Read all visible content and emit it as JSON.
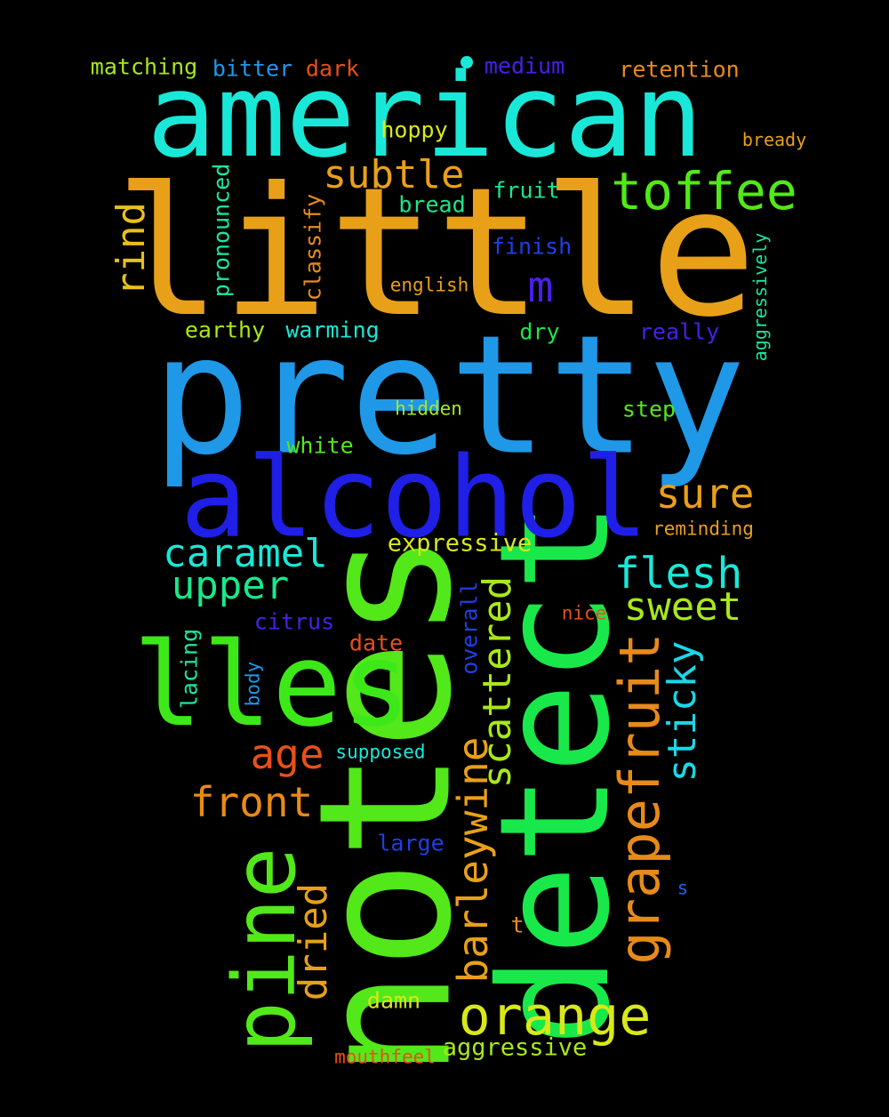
{
  "words": [
    {
      "text": "little",
      "color": "#e8a019"
    },
    {
      "text": "pretty",
      "color": "#1f98e8"
    },
    {
      "text": "american",
      "color": "#19e8d8"
    },
    {
      "text": "notes",
      "color": "#52e819"
    },
    {
      "text": "detect",
      "color": "#19e84a"
    },
    {
      "text": "alcohol",
      "color": "#1f1fe8"
    },
    {
      "text": "lles",
      "color": "#3de819"
    },
    {
      "text": "pine",
      "color": "#52e819"
    },
    {
      "text": "grapefruit",
      "color": "#e88a19"
    },
    {
      "text": "orange",
      "color": "#d8e819"
    },
    {
      "text": "toffee",
      "color": "#52e819"
    },
    {
      "text": "barleywine",
      "color": "#e8a019"
    },
    {
      "text": "scattered",
      "color": "#a8e819"
    },
    {
      "text": "sticky",
      "color": "#19d8e8"
    },
    {
      "text": "caramel",
      "color": "#19e8d8"
    },
    {
      "text": "upper",
      "color": "#19e88a"
    },
    {
      "text": "flesh",
      "color": "#19e8d8"
    },
    {
      "text": "sweet",
      "color": "#a8e819"
    },
    {
      "text": "sure",
      "color": "#e8a019"
    },
    {
      "text": "subtle",
      "color": "#e8a019"
    },
    {
      "text": "front",
      "color": "#e88a19"
    },
    {
      "text": "dried",
      "color": "#e8a019"
    },
    {
      "text": "age",
      "color": "#e85019"
    },
    {
      "text": "rind",
      "color": "#e8c019"
    },
    {
      "text": "m",
      "color": "#4a1fe8"
    },
    {
      "text": "expressive",
      "color": "#d8e819"
    },
    {
      "text": "aggressive",
      "color": "#a8e819"
    },
    {
      "text": "pronounced",
      "color": "#19e8a0"
    },
    {
      "text": "classify",
      "color": "#e88a19"
    },
    {
      "text": "aggressively",
      "color": "#19e8a0"
    },
    {
      "text": "matching",
      "color": "#a8e819"
    },
    {
      "text": "bitter",
      "color": "#1f98e8"
    },
    {
      "text": "dark",
      "color": "#e85019"
    },
    {
      "text": "medium",
      "color": "#4a1fe8"
    },
    {
      "text": "retention",
      "color": "#e88a19"
    },
    {
      "text": "bready",
      "color": "#e8a019"
    },
    {
      "text": "hoppy",
      "color": "#d8e819"
    },
    {
      "text": "fruit",
      "color": "#19e88a"
    },
    {
      "text": "bread",
      "color": "#19e88a"
    },
    {
      "text": "finish",
      "color": "#1f3fe8"
    },
    {
      "text": "english",
      "color": "#e8a019"
    },
    {
      "text": "earthy",
      "color": "#a8e819"
    },
    {
      "text": "warming",
      "color": "#19e8d8"
    },
    {
      "text": "dry",
      "color": "#19e84a"
    },
    {
      "text": "really",
      "color": "#4a1fe8"
    },
    {
      "text": "hidden",
      "color": "#a8e819"
    },
    {
      "text": "step",
      "color": "#52e819"
    },
    {
      "text": "white",
      "color": "#52e819"
    },
    {
      "text": "reminding",
      "color": "#e8a019"
    },
    {
      "text": "citrus",
      "color": "#4a1fe8"
    },
    {
      "text": "nice",
      "color": "#e85019"
    },
    {
      "text": "date",
      "color": "#e85019"
    },
    {
      "text": "overall",
      "color": "#1f3fe8"
    },
    {
      "text": "lacing",
      "color": "#19e8a0"
    },
    {
      "text": "body",
      "color": "#1f98e8"
    },
    {
      "text": "supposed",
      "color": "#19e8d8"
    },
    {
      "text": "large",
      "color": "#1f3fe8"
    },
    {
      "text": "s",
      "color": "#1f60e8"
    },
    {
      "text": "t",
      "color": "#e88a19"
    },
    {
      "text": "damn",
      "color": "#d8e819"
    },
    {
      "text": "mouthfeel",
      "color": "#e85019"
    }
  ],
  "dot": {
    "color": "#19e8d8"
  }
}
